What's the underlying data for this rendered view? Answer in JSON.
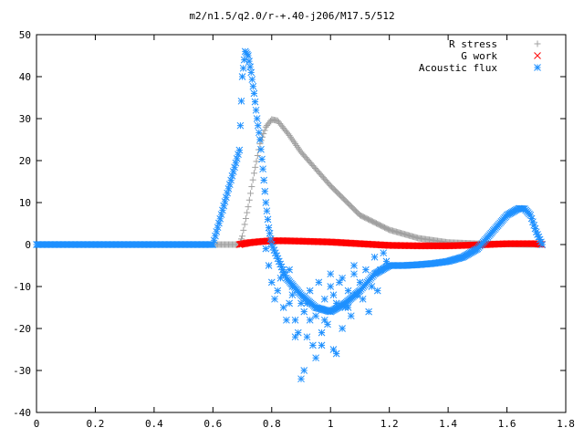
{
  "chart_data": {
    "type": "scatter",
    "title": "m2/n1.5/q2.0/r-+.40-j206/M17.5/512",
    "xlabel": "",
    "ylabel": "",
    "xlim": [
      0,
      1.8
    ],
    "ylim": [
      -40,
      50
    ],
    "x_ticks": [
      "0",
      "0.2",
      "0.4",
      "0.6",
      "0.8",
      "1",
      "1.2",
      "1.4",
      "1.6",
      "1.8"
    ],
    "y_ticks": [
      "50",
      "40",
      "30",
      "20",
      "10",
      "0",
      "-10",
      "-20",
      "-30",
      "-40"
    ],
    "grid": false,
    "legend_position": "top-right",
    "colors": {
      "r_stress": "#a0a0a0",
      "g_work": "#ff0000",
      "acoustic_flux": "#1e90ff",
      "axis": "#000000"
    },
    "series": [
      {
        "name": "R stress",
        "marker": "plus",
        "x": [
          0.0,
          0.2,
          0.4,
          0.6,
          0.69,
          0.7,
          0.72,
          0.74,
          0.76,
          0.78,
          0.8,
          0.82,
          0.86,
          0.9,
          1.0,
          1.1,
          1.2,
          1.3,
          1.4,
          1.5,
          1.6,
          1.7,
          1.72
        ],
        "y": [
          0,
          0,
          0,
          0,
          0,
          2,
          9,
          17,
          24,
          28,
          29.8,
          29.5,
          26,
          22,
          14,
          7,
          3.5,
          1.5,
          0.5,
          0.2,
          0.1,
          0,
          0
        ]
      },
      {
        "name": "G work",
        "marker": "cross",
        "x": [
          0.69,
          0.72,
          0.76,
          0.8,
          0.84,
          0.9,
          0.95,
          1.0,
          1.05,
          1.1,
          1.2,
          1.3,
          1.4,
          1.5,
          1.6,
          1.7,
          1.72
        ],
        "y": [
          0,
          0.4,
          0.7,
          0.9,
          0.9,
          0.8,
          0.7,
          0.6,
          0.4,
          0.2,
          -0.2,
          -0.3,
          -0.3,
          -0.1,
          0.2,
          0.2,
          0
        ]
      },
      {
        "name": "Acoustic flux",
        "marker": "star",
        "x": [
          0.0,
          0.2,
          0.4,
          0.6,
          0.69,
          0.7,
          0.71,
          0.72,
          0.73,
          0.74,
          0.75,
          0.76,
          0.77,
          0.78,
          0.79,
          0.8,
          0.85,
          0.9,
          0.95,
          1.0,
          1.05,
          1.1,
          1.15,
          1.2,
          1.25,
          1.3,
          1.35,
          1.4,
          1.45,
          1.5,
          1.55,
          1.6,
          1.64,
          1.66,
          1.68,
          1.7,
          1.72
        ],
        "y": [
          0,
          0,
          0,
          0,
          22.5,
          40,
          46,
          45,
          41,
          36,
          30,
          25,
          18,
          10,
          4,
          0,
          -8,
          -12,
          -15,
          -16,
          -14,
          -11,
          -7,
          -5,
          -5,
          -4.8,
          -4.5,
          -4,
          -3,
          -1,
          3,
          7,
          8.6,
          8.5,
          7,
          3,
          0
        ]
      }
    ],
    "acoustic_flux_scatter": {
      "x": [
        0.78,
        0.79,
        0.8,
        0.81,
        0.82,
        0.83,
        0.84,
        0.85,
        0.86,
        0.87,
        0.88,
        0.89,
        0.9,
        0.91,
        0.92,
        0.93,
        0.94,
        0.95,
        0.96,
        0.97,
        0.98,
        0.99,
        1.0,
        1.01,
        1.02,
        1.03,
        1.04,
        1.05,
        1.06,
        1.07,
        1.08,
        1.09,
        1.1,
        1.11,
        1.12,
        1.13,
        1.14,
        1.15,
        1.16,
        1.17,
        1.18,
        1.19,
        1.2,
        0.88,
        0.9,
        0.92,
        0.95,
        0.98,
        1.0,
        1.02,
        0.87,
        0.91,
        0.93,
        0.97,
        1.01,
        1.04,
        1.06,
        1.08,
        0.84,
        0.86
      ],
      "y": [
        -1,
        -5,
        -9,
        -13,
        -11,
        -8,
        -15,
        -18,
        -6,
        -12,
        -18,
        -21,
        -14,
        -16,
        -22,
        -11,
        -24,
        -17,
        -9,
        -21,
        -13,
        -19,
        -7,
        -25,
        -14,
        -9,
        -20,
        -15,
        -11,
        -17,
        -7,
        -12,
        -9,
        -13,
        -6,
        -16,
        -10,
        -3,
        -11,
        -6,
        -2,
        -4,
        -5,
        -22,
        -32,
        -14,
        -27,
        -18,
        -10,
        -26,
        -10,
        -30,
        -18,
        -24,
        -12,
        -8,
        -15,
        -5,
        -7,
        -14
      ]
    }
  }
}
